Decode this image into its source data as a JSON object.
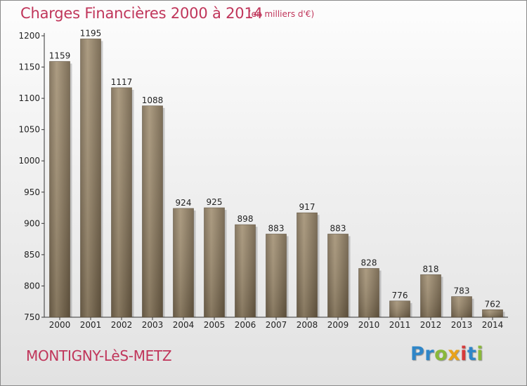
{
  "title": "Charges Financières 2000 à 2014",
  "subtitle": "(en milliers d'€)",
  "commune": "MONTIGNY-LèS-METZ",
  "logo": {
    "letters": [
      {
        "ch": "P",
        "color": "#2f86c8"
      },
      {
        "ch": "r",
        "color": "#2f86c8"
      },
      {
        "ch": "o",
        "color": "#8ab83a"
      },
      {
        "ch": "x",
        "color": "#e8a21c"
      },
      {
        "ch": "i",
        "color": "#d63a3a"
      },
      {
        "ch": "t",
        "color": "#2f86c8"
      },
      {
        "ch": "i",
        "color": "#8ab83a"
      }
    ]
  },
  "chart_data": {
    "type": "bar",
    "categories": [
      "2000",
      "2001",
      "2002",
      "2003",
      "2004",
      "2005",
      "2006",
      "2007",
      "2008",
      "2009",
      "2010",
      "2011",
      "2012",
      "2013",
      "2014"
    ],
    "values": [
      1159,
      1195,
      1117,
      1088,
      924,
      925,
      898,
      883,
      917,
      883,
      828,
      776,
      818,
      783,
      762
    ],
    "ylim": [
      750,
      1200
    ],
    "yticks": [
      750,
      800,
      850,
      900,
      950,
      1000,
      1050,
      1100,
      1150,
      1200
    ],
    "grid": false,
    "bar_color": "#8c7a5f"
  }
}
